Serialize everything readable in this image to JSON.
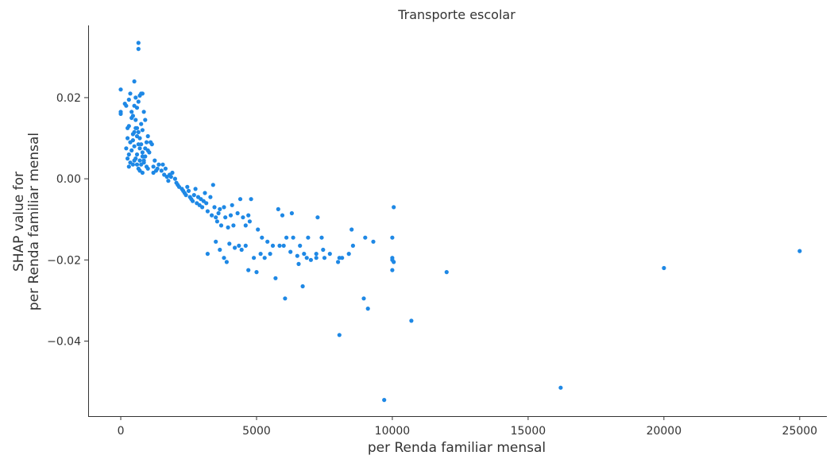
{
  "chart_data": {
    "type": "scatter",
    "title": "Transporte escolar",
    "xlabel": "per Renda familiar mensal",
    "ylabel_line1": "SHAP value for",
    "ylabel_line2": "per Renda familiar mensal",
    "xlim": [
      -1200,
      26000
    ],
    "ylim": [
      -0.0585,
      0.0378
    ],
    "xticks": [
      0,
      5000,
      10000,
      15000,
      20000,
      25000
    ],
    "xtick_labels": [
      "0",
      "5000",
      "10000",
      "15000",
      "20000",
      "25000"
    ],
    "yticks": [
      0.02,
      0.0,
      -0.02,
      -0.04
    ],
    "ytick_labels": [
      "0.02",
      "0.00",
      "−0.02",
      "−0.04"
    ],
    "grid": false,
    "point_color": "#1e88e5",
    "points": [
      [
        0,
        0.022
      ],
      [
        0,
        0.0165
      ],
      [
        0,
        0.016
      ],
      [
        150,
        0.0185
      ],
      [
        200,
        0.018
      ],
      [
        250,
        0.0125
      ],
      [
        200,
        0.0075
      ],
      [
        250,
        0.01
      ],
      [
        300,
        0.013
      ],
      [
        350,
        0.009
      ],
      [
        300,
        0.006
      ],
      [
        250,
        0.005
      ],
      [
        300,
        0.003
      ],
      [
        350,
        0.004
      ],
      [
        400,
        0.007
      ],
      [
        450,
        0.011
      ],
      [
        500,
        0.008
      ],
      [
        400,
        0.0165
      ],
      [
        450,
        0.0155
      ],
      [
        500,
        0.018
      ],
      [
        550,
        0.02
      ],
      [
        600,
        0.0175
      ],
      [
        650,
        0.019
      ],
      [
        700,
        0.0205
      ],
      [
        750,
        0.021
      ],
      [
        800,
        0.021
      ],
      [
        500,
        0.024
      ],
      [
        650,
        0.032
      ],
      [
        650,
        0.0335
      ],
      [
        300,
        0.0195
      ],
      [
        350,
        0.021
      ],
      [
        400,
        0.015
      ],
      [
        550,
        0.0145
      ],
      [
        600,
        0.0125
      ],
      [
        650,
        0.0115
      ],
      [
        700,
        0.01
      ],
      [
        750,
        0.0085
      ],
      [
        800,
        0.0065
      ],
      [
        850,
        0.004
      ],
      [
        900,
        0.0055
      ],
      [
        950,
        0.003
      ],
      [
        1000,
        0.0025
      ],
      [
        450,
        0.0035
      ],
      [
        500,
        0.0045
      ],
      [
        550,
        0.005
      ],
      [
        600,
        0.006
      ],
      [
        650,
        0.0025
      ],
      [
        700,
        0.002
      ],
      [
        750,
        0.0035
      ],
      [
        800,
        0.0015
      ],
      [
        850,
        0.0045
      ],
      [
        900,
        0.0075
      ],
      [
        950,
        0.009
      ],
      [
        1000,
        0.0105
      ],
      [
        450,
        0.0095
      ],
      [
        500,
        0.0115
      ],
      [
        550,
        0.0125
      ],
      [
        600,
        0.0105
      ],
      [
        650,
        0.0085
      ],
      [
        700,
        0.0075
      ],
      [
        750,
        0.0135
      ],
      [
        800,
        0.012
      ],
      [
        850,
        0.0165
      ],
      [
        900,
        0.0145
      ],
      [
        1000,
        0.007
      ],
      [
        600,
        0.0035
      ],
      [
        700,
        0.0045
      ],
      [
        800,
        0.0055
      ],
      [
        1050,
        0.0065
      ],
      [
        1100,
        0.009
      ],
      [
        1150,
        0.0085
      ],
      [
        1200,
        0.003
      ],
      [
        1250,
        0.0045
      ],
      [
        1300,
        0.002
      ],
      [
        1200,
        0.0015
      ],
      [
        1350,
        0.0025
      ],
      [
        1400,
        0.0035
      ],
      [
        1500,
        0.002
      ],
      [
        1550,
        0.0035
      ],
      [
        1600,
        0.001
      ],
      [
        1650,
        0.0025
      ],
      [
        1700,
        0.0005
      ],
      [
        1750,
        -0.0005
      ],
      [
        1800,
        0.001
      ],
      [
        1850,
        0.0005
      ],
      [
        1900,
        0.0015
      ],
      [
        2000,
        0.0
      ],
      [
        2050,
        -0.001
      ],
      [
        2100,
        -0.0015
      ],
      [
        2150,
        -0.002
      ],
      [
        2250,
        -0.0025
      ],
      [
        2300,
        -0.003
      ],
      [
        2350,
        -0.0035
      ],
      [
        2400,
        -0.004
      ],
      [
        2450,
        -0.002
      ],
      [
        2500,
        -0.003
      ],
      [
        2550,
        -0.0045
      ],
      [
        2600,
        -0.005
      ],
      [
        2650,
        -0.0055
      ],
      [
        2700,
        -0.004
      ],
      [
        2750,
        -0.0025
      ],
      [
        2800,
        -0.006
      ],
      [
        2850,
        -0.0045
      ],
      [
        2900,
        -0.0065
      ],
      [
        2950,
        -0.005
      ],
      [
        3000,
        -0.007
      ],
      [
        3050,
        -0.0055
      ],
      [
        3100,
        -0.0035
      ],
      [
        3150,
        -0.006
      ],
      [
        3200,
        -0.008
      ],
      [
        3300,
        -0.0045
      ],
      [
        3350,
        -0.009
      ],
      [
        3400,
        -0.0015
      ],
      [
        3450,
        -0.007
      ],
      [
        3500,
        -0.0095
      ],
      [
        3550,
        -0.0105
      ],
      [
        3600,
        -0.0085
      ],
      [
        3650,
        -0.0075
      ],
      [
        3700,
        -0.0115
      ],
      [
        3800,
        -0.007
      ],
      [
        3850,
        -0.0095
      ],
      [
        3950,
        -0.012
      ],
      [
        4050,
        -0.009
      ],
      [
        4100,
        -0.0065
      ],
      [
        4150,
        -0.0115
      ],
      [
        4300,
        -0.0085
      ],
      [
        4400,
        -0.005
      ],
      [
        4500,
        -0.0095
      ],
      [
        4600,
        -0.0115
      ],
      [
        4750,
        -0.0105
      ],
      [
        4800,
        -0.005
      ],
      [
        4700,
        -0.009
      ],
      [
        5050,
        -0.0125
      ],
      [
        5200,
        -0.0145
      ],
      [
        5400,
        -0.0155
      ],
      [
        5600,
        -0.0165
      ],
      [
        5800,
        -0.0075
      ],
      [
        5950,
        -0.009
      ],
      [
        6100,
        -0.0145
      ],
      [
        6300,
        -0.0085
      ],
      [
        6350,
        -0.0145
      ],
      [
        6500,
        -0.019
      ],
      [
        6600,
        -0.0165
      ],
      [
        6750,
        -0.0185
      ],
      [
        6900,
        -0.0145
      ],
      [
        7000,
        -0.02
      ],
      [
        7200,
        -0.0195
      ],
      [
        7250,
        -0.0095
      ],
      [
        7400,
        -0.0145
      ],
      [
        7500,
        -0.0195
      ],
      [
        7700,
        -0.0185
      ],
      [
        3200,
        -0.0185
      ],
      [
        3500,
        -0.0155
      ],
      [
        3650,
        -0.0175
      ],
      [
        3800,
        -0.0195
      ],
      [
        3900,
        -0.0205
      ],
      [
        4000,
        -0.016
      ],
      [
        4200,
        -0.017
      ],
      [
        4350,
        -0.0165
      ],
      [
        4450,
        -0.0175
      ],
      [
        4600,
        -0.0165
      ],
      [
        4700,
        -0.0225
      ],
      [
        4900,
        -0.0195
      ],
      [
        5000,
        -0.023
      ],
      [
        5150,
        -0.0185
      ],
      [
        5300,
        -0.0195
      ],
      [
        5500,
        -0.0185
      ],
      [
        5700,
        -0.0245
      ],
      [
        5850,
        -0.0165
      ],
      [
        6000,
        -0.0165
      ],
      [
        6050,
        -0.0295
      ],
      [
        6250,
        -0.018
      ],
      [
        6550,
        -0.021
      ],
      [
        6700,
        -0.0265
      ],
      [
        6850,
        -0.0195
      ],
      [
        7200,
        -0.0185
      ],
      [
        7450,
        -0.0175
      ],
      [
        8000,
        -0.0205
      ],
      [
        8050,
        -0.0195
      ],
      [
        8150,
        -0.0195
      ],
      [
        8400,
        -0.0185
      ],
      [
        8500,
        -0.0125
      ],
      [
        8550,
        -0.0165
      ],
      [
        8950,
        -0.0295
      ],
      [
        9000,
        -0.0145
      ],
      [
        9100,
        -0.032
      ],
      [
        9300,
        -0.0155
      ],
      [
        9700,
        -0.0545
      ],
      [
        10000,
        -0.0145
      ],
      [
        10000,
        -0.0195
      ],
      [
        10000,
        -0.02
      ],
      [
        10050,
        -0.0205
      ],
      [
        10000,
        -0.0225
      ],
      [
        10050,
        -0.007
      ],
      [
        10700,
        -0.035
      ],
      [
        12000,
        -0.023
      ],
      [
        8050,
        -0.0385
      ],
      [
        16200,
        -0.0515
      ],
      [
        20000,
        -0.022
      ],
      [
        25000,
        -0.0178
      ]
    ]
  }
}
